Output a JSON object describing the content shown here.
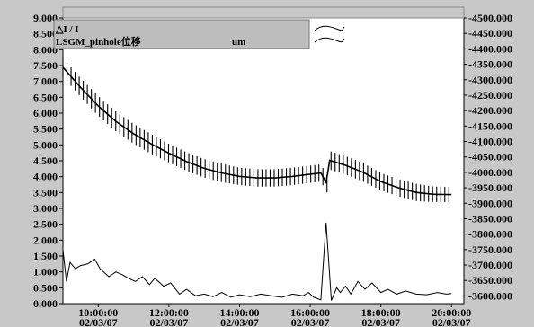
{
  "legend": {
    "line1_label": "△I / I",
    "line2_label": "LSGM_pinhole位移",
    "line2_unit": "um"
  },
  "chart_data": {
    "type": "line",
    "grid": false,
    "legend_position": "top-left",
    "x_tick_labels": [
      {
        "t": 10,
        "time": "10:00:00",
        "date": "02/03/07"
      },
      {
        "t": 12,
        "time": "12:00:00",
        "date": "02/03/07"
      },
      {
        "t": 14,
        "time": "14:00:00",
        "date": "02/03/07"
      },
      {
        "t": 16,
        "time": "16:00:00",
        "date": "02/03/07"
      },
      {
        "t": 18,
        "time": "18:00:00",
        "date": "02/03/07"
      },
      {
        "t": 20,
        "time": "20:00:00",
        "date": "02/03/07"
      }
    ],
    "xlim": [
      9.0,
      20.35
    ],
    "y_left": {
      "ylim": [
        0,
        9
      ],
      "ticks": [
        "0.000",
        "0.500",
        "1.000",
        "1.500",
        "2.000",
        "2.500",
        "3.000",
        "3.500",
        "4.000",
        "4.500",
        "5.000",
        "5.500",
        "6.000",
        "6.500",
        "7.000",
        "7.500",
        "8.000",
        "8.500",
        "9.000"
      ]
    },
    "y_right": {
      "ylim": [
        3575,
        4500
      ],
      "ticks": [
        "3600.000",
        "3650.000",
        "3700.000",
        "3750.000",
        "3800.000",
        "3850.000",
        "3900.000",
        "3950.000",
        "4000.000",
        "4050.000",
        "4100.000",
        "4150.000",
        "4200.000",
        "4250.000",
        "4300.000",
        "4350.000",
        "4400.000",
        "4450.000",
        "4500.000"
      ]
    },
    "series": [
      {
        "axis": "right",
        "style": "band",
        "color": "#000000",
        "x": [
          9.0,
          9.5,
          10.0,
          10.5,
          11.0,
          11.5,
          12.0,
          12.5,
          13.0,
          13.5,
          14.0,
          14.5,
          15.0,
          15.5,
          16.0,
          16.3,
          16.48,
          16.52,
          17.0,
          17.5,
          18.0,
          18.5,
          19.0,
          19.5,
          20.0
        ],
        "y": [
          4340,
          4275,
          4215,
          4165,
          4125,
          4092,
          4062,
          4035,
          4013,
          3998,
          3987,
          3982,
          3982,
          3987,
          3994,
          3998,
          3962,
          4040,
          4023,
          4000,
          3970,
          3950,
          3935,
          3929,
          3928
        ],
        "half_range": [
          30,
          30,
          32,
          32,
          32,
          32,
          30,
          30,
          30,
          30,
          28,
          28,
          28,
          28,
          28,
          28,
          28,
          30,
          30,
          30,
          28,
          28,
          28,
          25,
          25
        ]
      },
      {
        "axis": "left",
        "style": "line",
        "color": "#000000",
        "x": [
          9.0,
          9.1,
          9.2,
          9.35,
          9.5,
          9.7,
          9.9,
          10.05,
          10.3,
          10.5,
          10.7,
          10.85,
          11.05,
          11.25,
          11.45,
          11.6,
          11.85,
          12.05,
          12.3,
          12.5,
          12.75,
          13.0,
          13.25,
          13.5,
          13.75,
          14.0,
          14.3,
          14.6,
          14.9,
          15.2,
          15.5,
          15.8,
          15.95,
          16.1,
          16.3,
          16.45,
          16.6,
          16.75,
          16.85,
          17.0,
          17.15,
          17.35,
          17.55,
          17.75,
          18.0,
          18.2,
          18.45,
          18.7,
          19.0,
          19.3,
          19.6,
          19.85,
          20.0
        ],
        "y": [
          1.7,
          0.7,
          1.3,
          1.1,
          1.2,
          1.25,
          1.4,
          1.1,
          0.85,
          1.0,
          0.9,
          0.8,
          0.7,
          0.85,
          0.6,
          0.8,
          0.55,
          0.65,
          0.3,
          0.45,
          0.25,
          0.3,
          0.22,
          0.35,
          0.2,
          0.28,
          0.22,
          0.3,
          0.25,
          0.2,
          0.3,
          0.25,
          0.35,
          0.2,
          0.12,
          2.55,
          0.1,
          0.5,
          0.35,
          0.55,
          0.3,
          0.7,
          0.45,
          0.65,
          0.35,
          0.45,
          0.3,
          0.4,
          0.3,
          0.28,
          0.35,
          0.3,
          0.32
        ]
      }
    ]
  }
}
